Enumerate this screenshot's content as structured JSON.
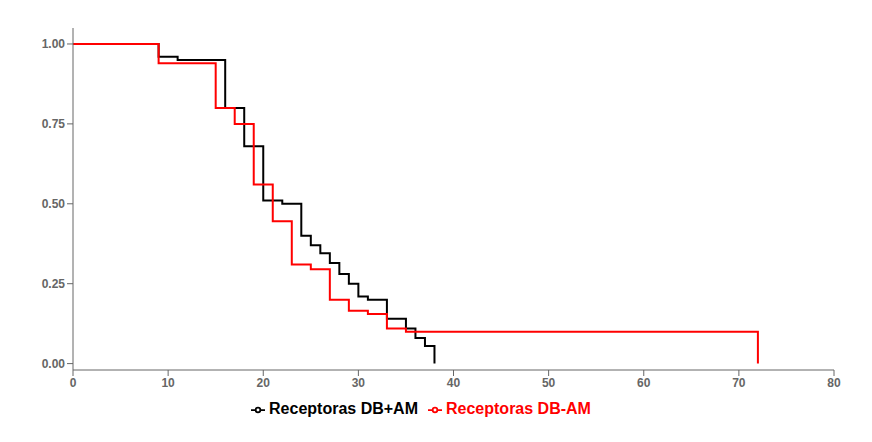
{
  "chart_data": {
    "type": "line",
    "line_style": "step",
    "xlim": [
      0,
      80
    ],
    "xticks": [
      0,
      10,
      20,
      30,
      40,
      50,
      60,
      70,
      80
    ],
    "ylim": [
      -0.02,
      1.05
    ],
    "yticks": [
      {
        "value": 0,
        "label": "0.00"
      },
      0.25,
      {
        "value": 0.5,
        "label": "0.50"
      },
      0.75,
      {
        "value": 1,
        "label": "1.00"
      }
    ],
    "grid": false,
    "legend": "bottom",
    "series": [
      {
        "name": "Receptoras DB+AM",
        "color": "#000000",
        "x": [
          0,
          9,
          9,
          11,
          11,
          16,
          16,
          18,
          18,
          20,
          20,
          22,
          22,
          24,
          24,
          25,
          25,
          26,
          26,
          27,
          27,
          28,
          28,
          29,
          29,
          30,
          30,
          31,
          31,
          33,
          33,
          35,
          35,
          36,
          36,
          37,
          37,
          38,
          38
        ],
        "values": [
          1.0,
          1.0,
          0.96,
          0.96,
          0.95,
          0.95,
          0.8,
          0.8,
          0.68,
          0.68,
          0.51,
          0.51,
          0.5,
          0.5,
          0.4,
          0.4,
          0.37,
          0.37,
          0.345,
          0.345,
          0.315,
          0.315,
          0.28,
          0.28,
          0.25,
          0.25,
          0.21,
          0.21,
          0.2,
          0.2,
          0.14,
          0.14,
          0.11,
          0.11,
          0.08,
          0.08,
          0.055,
          0.055,
          0.0
        ]
      },
      {
        "name": "Receptoras DB-AM",
        "color": "#ff0000",
        "x": [
          0,
          9,
          9,
          15,
          15,
          17,
          17,
          19,
          19,
          21,
          21,
          23,
          23,
          25,
          25,
          27,
          27,
          29,
          29,
          31,
          31,
          33,
          33,
          35,
          35,
          36,
          36,
          72,
          72
        ],
        "values": [
          1.0,
          1.0,
          0.94,
          0.94,
          0.8,
          0.8,
          0.75,
          0.75,
          0.56,
          0.56,
          0.445,
          0.445,
          0.31,
          0.31,
          0.295,
          0.295,
          0.2,
          0.2,
          0.165,
          0.165,
          0.155,
          0.155,
          0.11,
          0.11,
          0.1,
          0.1,
          0.1,
          0.1,
          0.0
        ]
      }
    ]
  }
}
